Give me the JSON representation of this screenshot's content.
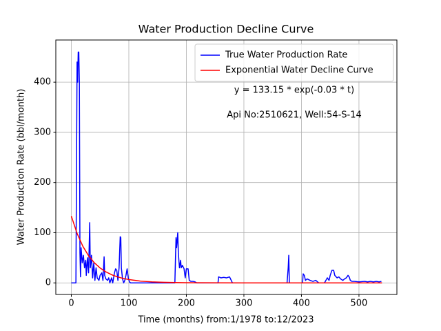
{
  "chart_data": {
    "type": "line",
    "title": "Water Production Decline Curve",
    "xlabel": "Time (months) from:1/1978 to:12/2023",
    "ylabel": "Water Production Rate (bbl/month)",
    "annotations": [
      "y = 133.15 * exp(-0.03 * t)",
      "Api No:2510621, Well:54-S-14"
    ],
    "xlim": [
      -26.95,
      565.95
    ],
    "ylim": [
      -23.05,
      484.05
    ],
    "xticks": [
      0,
      100,
      200,
      300,
      400,
      500
    ],
    "yticks": [
      0,
      100,
      200,
      300,
      400
    ],
    "grid": true,
    "legend": "upper right",
    "series": [
      {
        "name": "True Water Production Rate",
        "color": "#0000ff",
        "x": [
          0,
          8,
          10,
          11,
          12,
          13,
          14,
          15,
          16,
          17,
          19,
          21,
          23,
          25,
          26,
          28,
          30,
          32,
          33,
          35,
          37,
          39,
          41,
          43,
          45,
          48,
          50,
          53,
          55,
          57,
          58,
          60,
          63,
          65,
          67,
          70,
          72,
          75,
          77,
          79,
          81,
          83,
          85,
          86,
          87,
          89,
          91,
          93,
          95,
          97,
          99,
          101,
          103,
          180,
          182,
          183,
          185,
          186,
          188,
          190,
          191,
          193,
          196,
          198,
          200,
          203,
          205,
          208,
          212,
          215,
          218,
          255,
          256,
          260,
          265,
          270,
          275,
          278,
          280,
          375,
          377,
          378,
          379,
          402,
          403,
          405,
          407,
          410,
          415,
          420,
          425,
          430,
          440,
          445,
          448,
          450,
          453,
          456,
          458,
          462,
          465,
          468,
          472,
          475,
          478,
          481,
          483,
          485,
          488,
          492,
          500,
          510,
          515,
          520,
          525,
          530,
          535,
          539
        ],
        "values": [
          0,
          0,
          440,
          400,
          460,
          460,
          400,
          60,
          12,
          70,
          40,
          55,
          30,
          45,
          15,
          50,
          20,
          120,
          30,
          55,
          10,
          40,
          5,
          30,
          10,
          5,
          15,
          20,
          5,
          52,
          15,
          8,
          5,
          10,
          0,
          10,
          0,
          20,
          28,
          25,
          5,
          30,
          92,
          90,
          30,
          8,
          0,
          5,
          15,
          28,
          10,
          2,
          0,
          0,
          90,
          70,
          100,
          60,
          30,
          45,
          30,
          35,
          28,
          10,
          28,
          28,
          5,
          3,
          3,
          2,
          0,
          0,
          12,
          10,
          11,
          10,
          12,
          5,
          0,
          0,
          30,
          55,
          0,
          0,
          18,
          15,
          5,
          8,
          5,
          3,
          5,
          0,
          0,
          10,
          5,
          15,
          25,
          25,
          15,
          10,
          12,
          8,
          5,
          8,
          10,
          15,
          12,
          5,
          3,
          3,
          2,
          3,
          2,
          3,
          2,
          3,
          2,
          3
        ]
      },
      {
        "name": "Exponential Water Decline Curve",
        "color": "#ff0000",
        "x": [
          0,
          10,
          20,
          30,
          40,
          50,
          60,
          70,
          80,
          90,
          100,
          120,
          140,
          160,
          180,
          200,
          250,
          300,
          400,
          540
        ],
        "values": [
          133.15,
          98.64,
          73.07,
          54.13,
          40.11,
          29.71,
          22.01,
          16.31,
          12.08,
          8.95,
          6.63,
          3.64,
          2.0,
          1.1,
          0.6,
          0.33,
          0.07,
          0.02,
          0,
          0
        ]
      }
    ]
  }
}
